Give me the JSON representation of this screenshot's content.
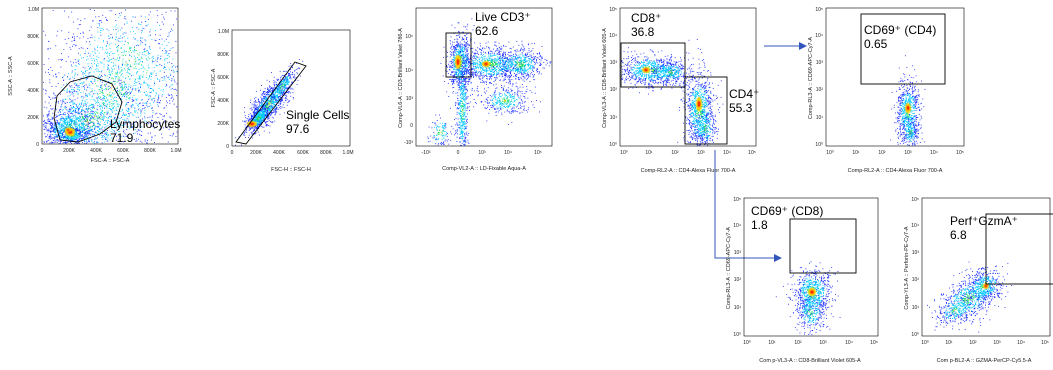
{
  "colors": {
    "arrow": "#3355bb",
    "sparse": "#1a2cff",
    "mid": "#00c8ff",
    "core": "#20e060",
    "hot": "#ffd000",
    "peak": "#ff1a00"
  },
  "chart_data": [
    {
      "id": "p1",
      "type": "scatter",
      "xscale": "linear",
      "yscale": "linear",
      "xlabel": "FSC-A :: FSC-A",
      "ylabel": "SSC-A :: SSC-A",
      "xticks": [
        "0",
        "200K",
        "400K",
        "600K",
        "800K",
        "1.0M"
      ],
      "yticks": [
        "0",
        "200K",
        "400K",
        "600K",
        "800K",
        "1.0M"
      ],
      "gate": {
        "name": "Lymphocytes",
        "value": "71.9",
        "shape": "polygon"
      }
    },
    {
      "id": "p2",
      "type": "scatter",
      "xscale": "linear",
      "yscale": "linear",
      "xlabel": "FSC-H :: FSC-H",
      "ylabel": "FSC-A :: FSC-A",
      "xticks": [
        "0",
        "200K",
        "400K",
        "600K",
        "800K",
        "1.0M"
      ],
      "yticks": [
        "0",
        "200K",
        "400K",
        "600K",
        "800K",
        "1.0M"
      ],
      "gate": {
        "name": "Single Cells",
        "value": "97.6",
        "shape": "polygon"
      }
    },
    {
      "id": "p3",
      "type": "scatter",
      "xscale": "log",
      "yscale": "log",
      "xlabel": "Comp-VL2-A :: LD-Fixable Aqua-A",
      "ylabel": "Comp-VL6-A :: CD3-Brilliant Violet 786-A",
      "xticks": [
        "-10³",
        "0",
        "10³",
        "10⁴",
        "10⁵"
      ],
      "yticks": [
        "-10³",
        "0",
        "10³",
        "10⁴",
        "10⁵"
      ],
      "gate": {
        "name": "Live CD3⁺",
        "value": "62.6",
        "shape": "rectangle"
      }
    },
    {
      "id": "p4",
      "type": "scatter",
      "xscale": "log",
      "yscale": "log",
      "xlabel": "Comp-RL2-A :: CD4-Alexa Fluor   700-A",
      "ylabel": "Comp-VL3-A :: CD8-Brilliant Violet 605-A",
      "xticks": [
        "10⁰",
        "10¹",
        "10²",
        "10³",
        "10⁴",
        "10⁵"
      ],
      "yticks": [
        "10⁰",
        "10¹",
        "10²",
        "10³",
        "10⁴",
        "10⁵"
      ],
      "gates": [
        {
          "name": "CD8⁺",
          "value": "36.8",
          "shape": "rectangle"
        },
        {
          "name": "CD4⁺",
          "value": "55.3",
          "shape": "rectangle"
        }
      ]
    },
    {
      "id": "p5",
      "type": "scatter",
      "xscale": "log",
      "yscale": "log",
      "xlabel": "Comp-RL2-A :: CD4-Alexa Fluor   700-A",
      "ylabel": "Comp-RL3-A :: CD69-APC-Cy7-A",
      "xticks": [
        "10⁰",
        "10¹",
        "10²",
        "10³",
        "10⁴",
        "10⁵"
      ],
      "yticks": [
        "10⁰",
        "10¹",
        "10²",
        "10³",
        "10⁴",
        "10⁵"
      ],
      "gate": {
        "name": "CD69⁺ (CD4)",
        "value": "0.65",
        "shape": "rectangle"
      }
    },
    {
      "id": "p6",
      "type": "scatter",
      "xscale": "log",
      "yscale": "log",
      "xlabel": "Com p-VL3-A :: CD8-Brilliant Violet 605-A",
      "ylabel": "Comp-RL3-A :: CD69-APC-Cy7-A",
      "xticks": [
        "10⁰",
        "10¹",
        "10²",
        "10³",
        "10⁴",
        "10⁵"
      ],
      "yticks": [
        "10⁰",
        "10¹",
        "10²",
        "10³",
        "10⁴",
        "10⁵"
      ],
      "gate": {
        "name": "CD69⁺ (CD8)",
        "value": "1.8",
        "shape": "rectangle"
      }
    },
    {
      "id": "p7",
      "type": "scatter",
      "xscale": "log",
      "yscale": "log",
      "xlabel": "Com p-BL2-A :: GZMA-PerCP-Cy5.5-A",
      "ylabel": "Comp-YL3-A :: Perforin-PE-Cy7-A",
      "xticks": [
        "10⁰",
        "10¹",
        "10²",
        "10³",
        "10⁴",
        "10⁵"
      ],
      "yticks": [
        "10⁰",
        "10¹",
        "10²",
        "10³",
        "10⁴",
        "10⁵"
      ],
      "gate": {
        "name": "Perf⁺GzmA⁺",
        "value": "6.8",
        "shape": "rectangle"
      }
    }
  ]
}
